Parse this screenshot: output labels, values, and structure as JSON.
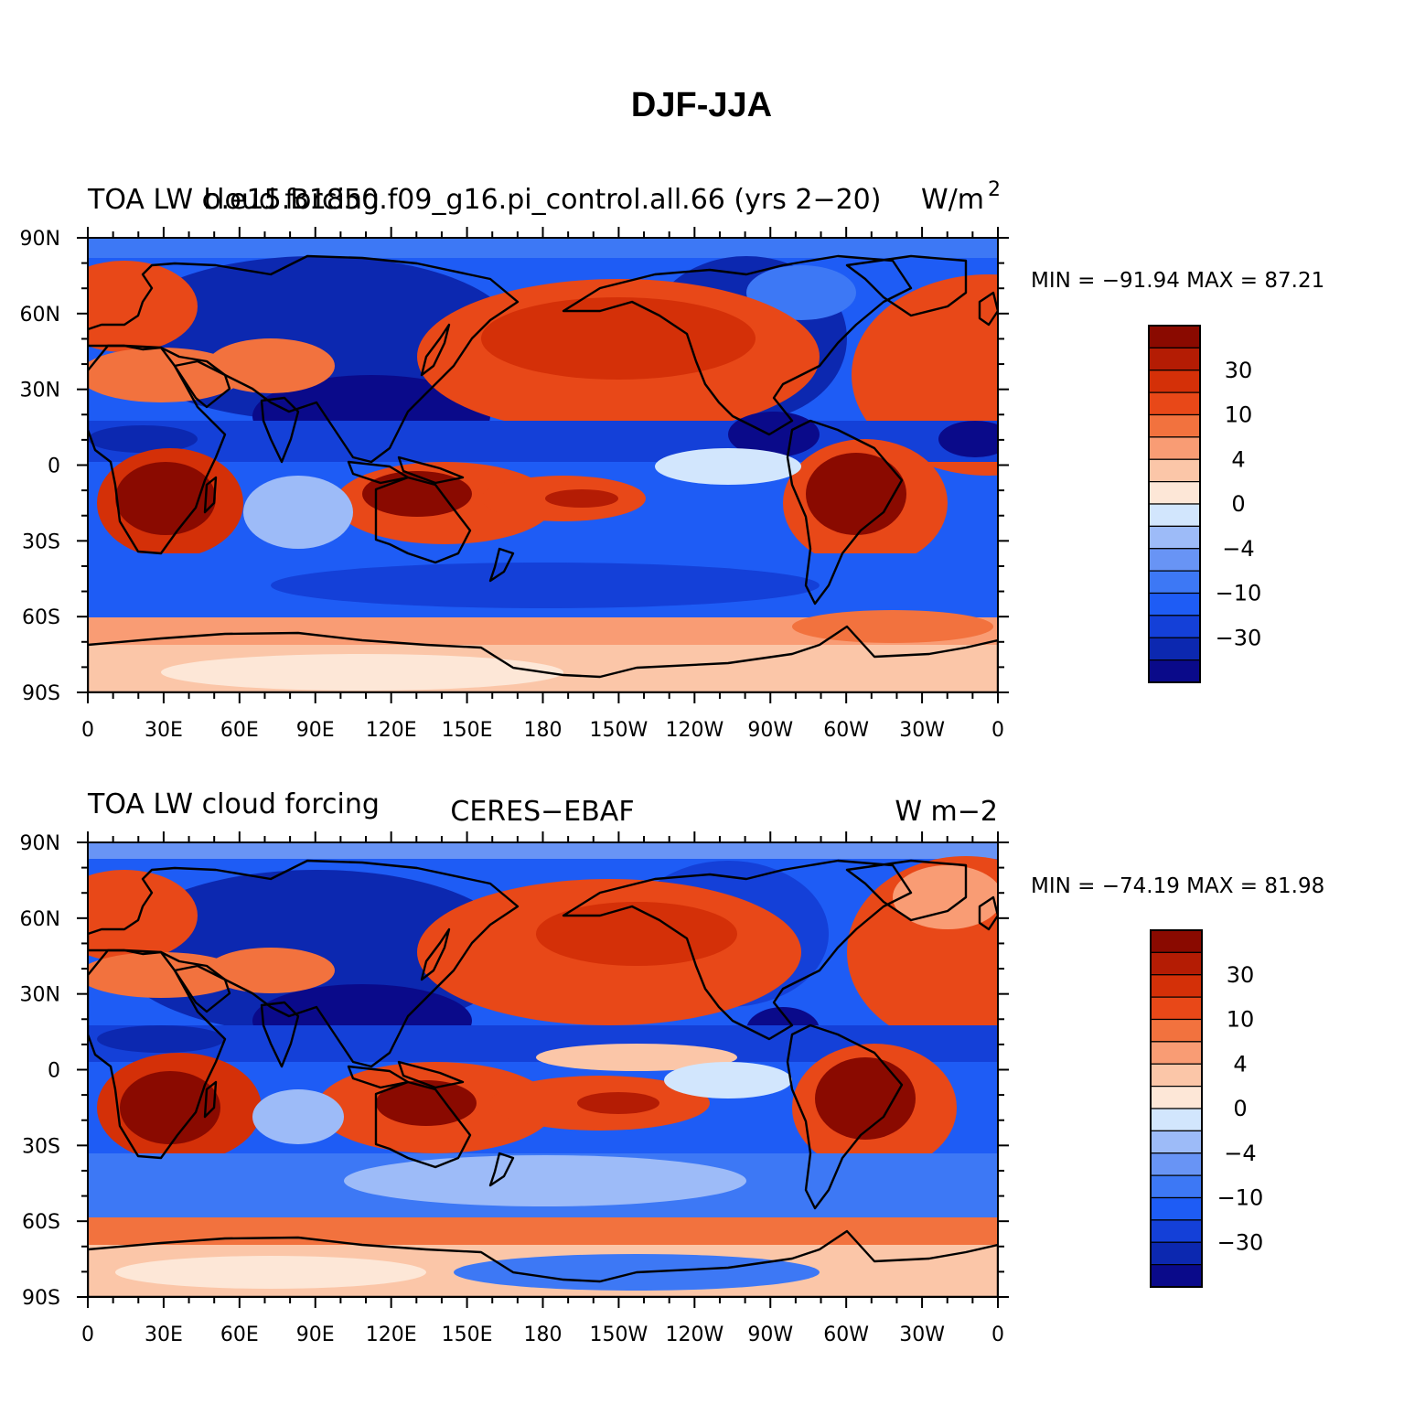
{
  "figure": {
    "title": "DJF-JJA",
    "colors": {
      "levels": [
        "#0a0a8a",
        "#0c28b0",
        "#1440d8",
        "#1e5cf5",
        "#3d78f5",
        "#6894f5",
        "#9dbbf8",
        "#d2e6fd",
        "#fde7d7",
        "#fbc6a8",
        "#f99c74",
        "#f2723e",
        "#e84818",
        "#d43008",
        "#b41c04",
        "#8a0a00"
      ],
      "coast": "#000000"
    },
    "map": {
      "lon_range": [
        0,
        360
      ],
      "lat_range": [
        -90,
        90
      ],
      "x_ticks": [
        "0",
        "30E",
        "60E",
        "90E",
        "120E",
        "150E",
        "180",
        "150W",
        "120W",
        "90W",
        "60W",
        "30W",
        "0"
      ],
      "y_ticks": [
        "90N",
        "60N",
        "30N",
        "0",
        "30S",
        "60S",
        "90S"
      ]
    },
    "colorbar": {
      "labels": [
        "30",
        "10",
        "4",
        "0",
        "−4",
        "−10",
        "−30"
      ]
    },
    "panels": [
      {
        "left_title": "TOA LW cloud forcing",
        "center_title": "b.e15.B1850.f09_g16.pi_control.all.66 (yrs 2−20)",
        "right_title": "W/m",
        "right_sup": "2",
        "minmax": "MIN = −91.94  MAX =   87.21"
      },
      {
        "left_title": "TOA LW cloud forcing",
        "center_title": "CERES−EBAF",
        "right_title": "W m−2",
        "right_sup": "",
        "minmax": "MIN = −74.19  MAX =   81.98"
      }
    ]
  }
}
